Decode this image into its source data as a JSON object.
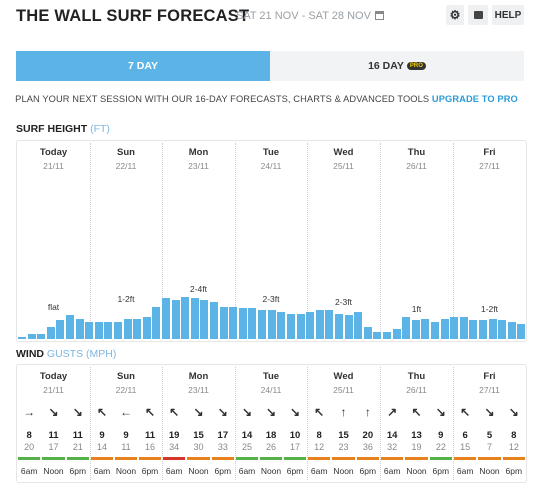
{
  "header": {
    "title": "THE WALL SURF FORECAST",
    "dates": "SAT 21 NOV - SAT 28 NOV",
    "help_label": "HELP"
  },
  "tabs": [
    {
      "label": "7 DAY",
      "active": true
    },
    {
      "label": "16 DAY",
      "badge": "PRO",
      "active": false
    }
  ],
  "promo": {
    "text": "PLAN YOUR NEXT SESSION WITH OUR 16-DAY FORECASTS, CHARTS & ADVANCED TOOLS",
    "link": "UPGRADE TO PRO"
  },
  "surf": {
    "title": "SURF HEIGHT",
    "unit": "(FT)",
    "days": [
      {
        "name": "Today",
        "date": "21/11"
      },
      {
        "name": "Sun",
        "date": "22/11"
      },
      {
        "name": "Mon",
        "date": "23/11"
      },
      {
        "name": "Tue",
        "date": "24/11"
      },
      {
        "name": "Wed",
        "date": "25/11"
      },
      {
        "name": "Thu",
        "date": "26/11"
      },
      {
        "name": "Fri",
        "date": "27/11"
      }
    ],
    "day_labels": [
      "flat",
      "1-2ft",
      "2-4ft",
      "2-3ft",
      "2-3ft",
      "1ft",
      "1-2ft"
    ],
    "bars": [
      0.1,
      0.3,
      0.3,
      0.7,
      1.1,
      1.4,
      1.2,
      1.0,
      1.0,
      1.0,
      1.0,
      1.2,
      1.2,
      1.3,
      1.9,
      2.4,
      2.3,
      2.5,
      2.4,
      2.3,
      2.2,
      1.9,
      1.9,
      1.8,
      1.8,
      1.7,
      1.7,
      1.6,
      1.5,
      1.5,
      1.6,
      1.7,
      1.7,
      1.5,
      1.4,
      1.6,
      0.7,
      0.4,
      0.4,
      0.6,
      1.3,
      1.1,
      1.2,
      1.0,
      1.2,
      1.3,
      1.3,
      1.1,
      1.1,
      1.2,
      1.1,
      1.0,
      0.9
    ]
  },
  "wind": {
    "title": "WIND",
    "unit": "GUSTS (MPH)",
    "days": [
      {
        "name": "Today",
        "date": "21/11"
      },
      {
        "name": "Sun",
        "date": "22/11"
      },
      {
        "name": "Mon",
        "date": "23/11"
      },
      {
        "name": "Tue",
        "date": "24/11"
      },
      {
        "name": "Wed",
        "date": "25/11"
      },
      {
        "name": "Thu",
        "date": "26/11"
      },
      {
        "name": "Fri",
        "date": "27/11"
      }
    ],
    "entries": [
      {
        "dir": "→",
        "speed": "8",
        "gust": "20"
      },
      {
        "dir": "↘",
        "speed": "11",
        "gust": "17"
      },
      {
        "dir": "↘",
        "speed": "11",
        "gust": "21"
      },
      {
        "dir": "↖",
        "speed": "9",
        "gust": "14"
      },
      {
        "dir": "←",
        "speed": "9",
        "gust": "11"
      },
      {
        "dir": "↖",
        "speed": "11",
        "gust": "16"
      },
      {
        "dir": "↖",
        "speed": "19",
        "gust": "34"
      },
      {
        "dir": "↘",
        "speed": "15",
        "gust": "30"
      },
      {
        "dir": "↘",
        "speed": "17",
        "gust": "33"
      },
      {
        "dir": "↘",
        "speed": "14",
        "gust": "25"
      },
      {
        "dir": "↘",
        "speed": "18",
        "gust": "26"
      },
      {
        "dir": "↘",
        "speed": "10",
        "gust": "17"
      },
      {
        "dir": "↖",
        "speed": "8",
        "gust": "12"
      },
      {
        "dir": "↑",
        "speed": "15",
        "gust": "23"
      },
      {
        "dir": "↑",
        "speed": "20",
        "gust": "36"
      },
      {
        "dir": "↗",
        "speed": "14",
        "gust": "32"
      },
      {
        "dir": "↖",
        "speed": "13",
        "gust": "19"
      },
      {
        "dir": "↘",
        "speed": "9",
        "gust": "22"
      },
      {
        "dir": "↖",
        "speed": "6",
        "gust": "15"
      },
      {
        "dir": "↘",
        "speed": "5",
        "gust": "7"
      },
      {
        "dir": "↘",
        "speed": "8",
        "gust": "12"
      }
    ],
    "ratings": [
      "#55b24a",
      "#55b24a",
      "#55b24a",
      "#e8821e",
      "#e8821e",
      "#e8821e",
      "#d9342b",
      "#e8821e",
      "#e8821e",
      "#55b24a",
      "#55b24a",
      "#55b24a",
      "#e8821e",
      "#e8821e",
      "#e8821e",
      "#e8821e",
      "#e8821e",
      "#55b24a",
      "#e8821e",
      "#e8821e",
      "#e8821e"
    ],
    "times": [
      "6am",
      "Noon",
      "6pm"
    ]
  },
  "colors": {
    "accent": "#5cb3e6",
    "link": "#2d9ad8"
  }
}
